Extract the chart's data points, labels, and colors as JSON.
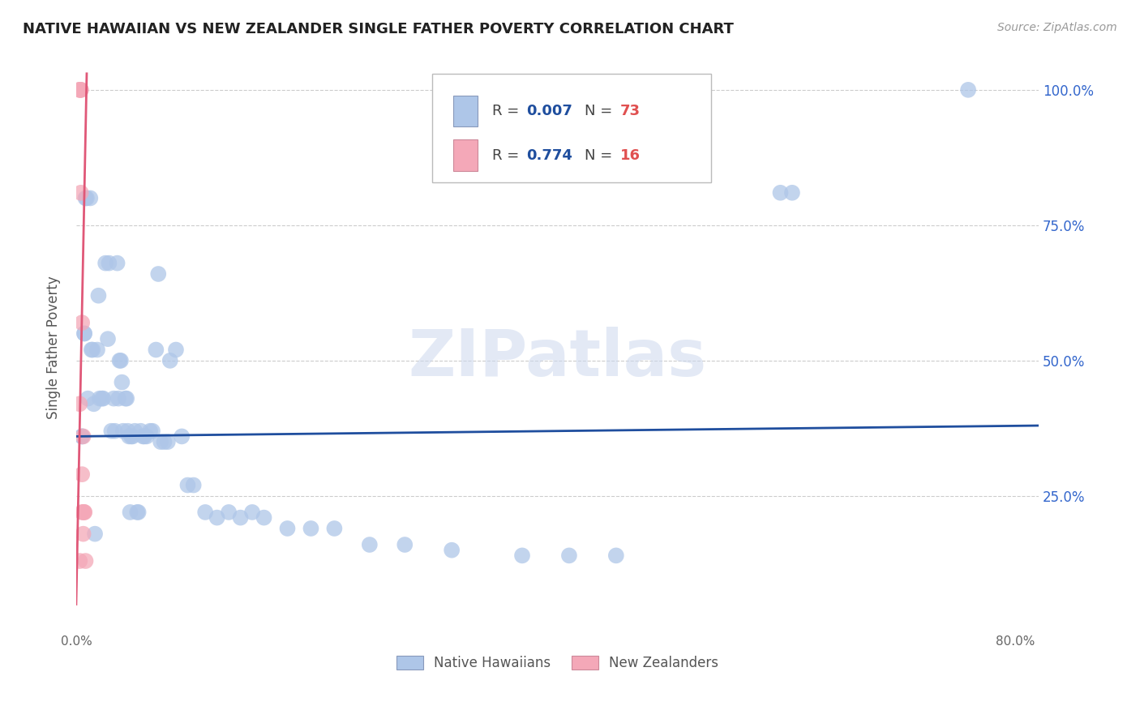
{
  "title": "NATIVE HAWAIIAN VS NEW ZEALANDER SINGLE FATHER POVERTY CORRELATION CHART",
  "source": "Source: ZipAtlas.com",
  "ylabel": "Single Father Poverty",
  "legend_blue_label": "Native Hawaiians",
  "legend_pink_label": "New Zealanders",
  "watermark": "ZIPatlas",
  "blue_color": "#aec6e8",
  "blue_line_color": "#1f4e9e",
  "pink_color": "#f4a8b8",
  "pink_line_color": "#e05878",
  "r_value_color": "#1f4e9e",
  "n_value_color": "#e05050",
  "background_color": "#ffffff",
  "grid_color": "#cccccc",
  "title_color": "#222222",
  "axis_label_color": "#555555",
  "right_tick_color": "#3366cc",
  "native_hawaiian_x": [
    0.005,
    0.005,
    0.007,
    0.007,
    0.008,
    0.009,
    0.01,
    0.012,
    0.013,
    0.014,
    0.015,
    0.016,
    0.018,
    0.019,
    0.02,
    0.022,
    0.023,
    0.025,
    0.027,
    0.028,
    0.03,
    0.032,
    0.033,
    0.035,
    0.036,
    0.037,
    0.038,
    0.039,
    0.04,
    0.042,
    0.043,
    0.044,
    0.045,
    0.046,
    0.047,
    0.048,
    0.05,
    0.052,
    0.053,
    0.055,
    0.057,
    0.058,
    0.06,
    0.063,
    0.065,
    0.068,
    0.07,
    0.072,
    0.075,
    0.078,
    0.08,
    0.085,
    0.09,
    0.095,
    0.1,
    0.11,
    0.12,
    0.13,
    0.14,
    0.15,
    0.16,
    0.18,
    0.2,
    0.22,
    0.25,
    0.28,
    0.32,
    0.38,
    0.42,
    0.46,
    0.6,
    0.61,
    0.76
  ],
  "native_hawaiian_y": [
    0.36,
    0.36,
    0.55,
    0.55,
    0.8,
    0.8,
    0.43,
    0.8,
    0.52,
    0.52,
    0.42,
    0.18,
    0.52,
    0.62,
    0.43,
    0.43,
    0.43,
    0.68,
    0.54,
    0.68,
    0.37,
    0.43,
    0.37,
    0.68,
    0.43,
    0.5,
    0.5,
    0.46,
    0.37,
    0.43,
    0.43,
    0.37,
    0.36,
    0.22,
    0.36,
    0.36,
    0.37,
    0.22,
    0.22,
    0.37,
    0.36,
    0.36,
    0.36,
    0.37,
    0.37,
    0.52,
    0.66,
    0.35,
    0.35,
    0.35,
    0.5,
    0.52,
    0.36,
    0.27,
    0.27,
    0.22,
    0.21,
    0.22,
    0.21,
    0.22,
    0.21,
    0.19,
    0.19,
    0.19,
    0.16,
    0.16,
    0.15,
    0.14,
    0.14,
    0.14,
    0.81,
    0.81,
    1.0
  ],
  "new_zealander_x": [
    0.003,
    0.003,
    0.003,
    0.003,
    0.004,
    0.004,
    0.004,
    0.005,
    0.005,
    0.005,
    0.006,
    0.006,
    0.006,
    0.007,
    0.007,
    0.008
  ],
  "new_zealander_y": [
    1.0,
    1.0,
    0.42,
    0.13,
    1.0,
    1.0,
    0.81,
    0.57,
    0.29,
    0.22,
    0.36,
    0.22,
    0.18,
    0.22,
    0.22,
    0.13
  ],
  "xlim": [
    0.0,
    0.82
  ],
  "ylim": [
    0.0,
    1.05
  ],
  "blue_trend_x": [
    0.0,
    0.82
  ],
  "blue_trend_y": [
    0.36,
    0.38
  ],
  "pink_trend_x": [
    0.0,
    0.009
  ],
  "pink_trend_y": [
    0.05,
    1.03
  ]
}
